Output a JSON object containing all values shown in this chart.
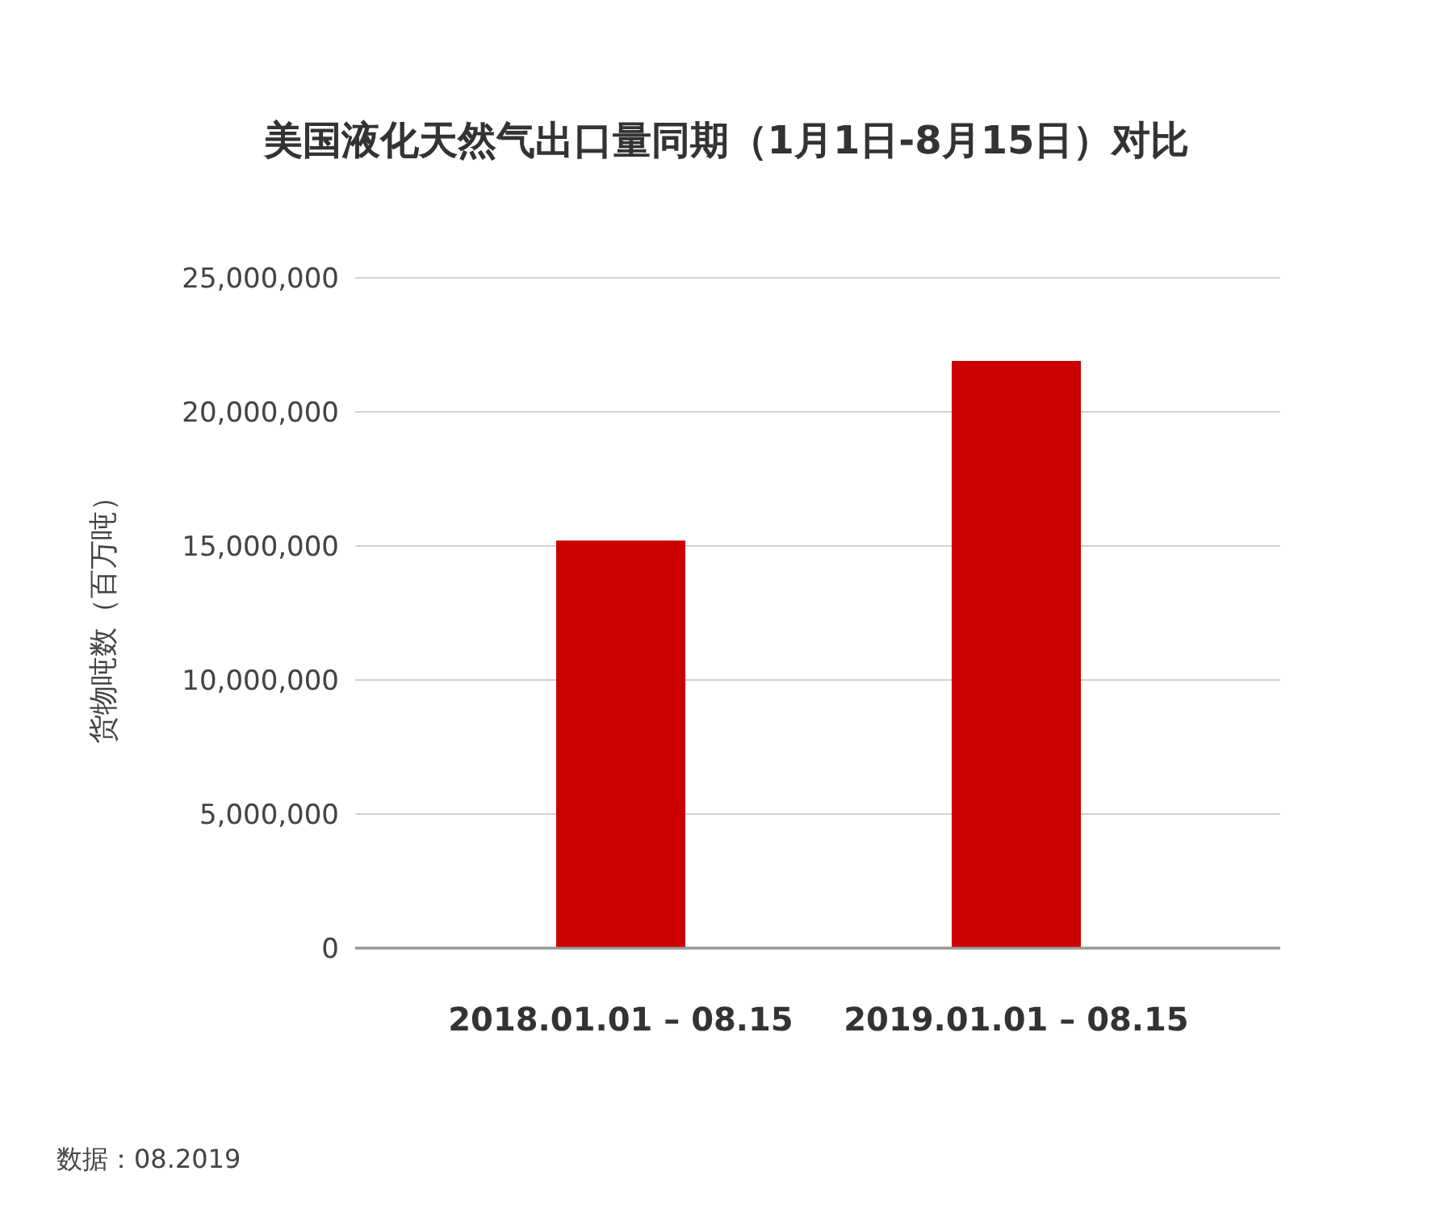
{
  "chart_data": {
    "type": "bar",
    "title": "美国液化天然气出口量同期（1月1日-8月15日）对比",
    "ylabel": "货物吨数（百万吨）",
    "categories": [
      "2018.01.01 – 08.15",
      "2019.01.01 – 08.15"
    ],
    "values": [
      15200000,
      21900000
    ],
    "color": "#cc0000",
    "ylim": [
      0,
      25000000
    ],
    "yticks": [
      {
        "value": 0,
        "label": "0"
      },
      {
        "value": 5000000,
        "label": "5,000,000"
      },
      {
        "value": 10000000,
        "label": "10,000,000"
      },
      {
        "value": 15000000,
        "label": "15,000,000"
      },
      {
        "value": 20000000,
        "label": "20,000,000"
      },
      {
        "value": 25000000,
        "label": "25,000,000"
      }
    ],
    "grid": "y",
    "annotations": [
      "数据：08.2019"
    ]
  }
}
